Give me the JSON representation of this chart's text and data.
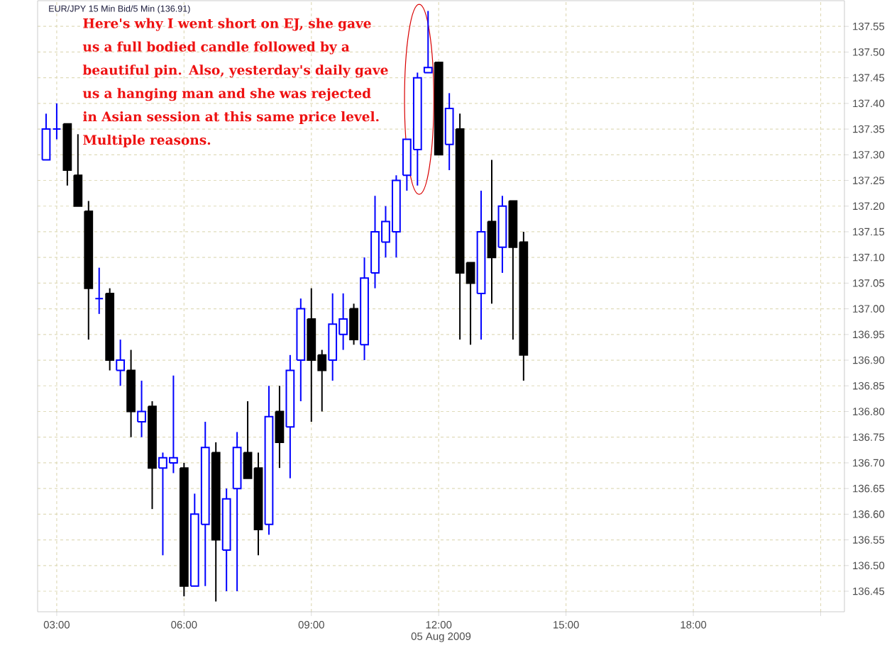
{
  "chart_data": {
    "type": "candlestick",
    "title": "EUR/JPY 15 Min Bid/5 Min (136.91)",
    "xlabel": "05 Aug 2009",
    "annotations": [
      "Here's why I went short on EJ, she gave us a full bodied candle followed by a beautiful pin.  Also, yesterday's daily gave us a hanging man and she was rejected in Asian session at this same price level. Multiple reasons."
    ],
    "x": [
      2.75,
      3.0,
      3.25,
      3.5,
      3.75,
      4.0,
      4.25,
      4.5,
      4.75,
      5.0,
      5.25,
      5.5,
      5.75,
      6.0,
      6.25,
      6.5,
      6.75,
      7.0,
      7.25,
      7.5,
      7.75,
      8.0,
      8.25,
      8.5,
      8.75,
      9.0,
      9.25,
      9.5,
      9.75,
      10.0,
      10.25,
      10.5,
      10.75,
      11.0,
      11.25,
      11.5,
      11.75,
      12.0,
      12.25,
      12.5,
      12.75,
      13.0,
      13.25,
      13.5,
      13.75,
      14.0
    ],
    "ohlc": [
      [
        137.29,
        137.38,
        137.29,
        137.35
      ],
      [
        137.35,
        137.4,
        137.33,
        137.35
      ],
      [
        137.36,
        137.36,
        137.24,
        137.27
      ],
      [
        137.26,
        137.34,
        137.2,
        137.2
      ],
      [
        137.19,
        137.21,
        136.94,
        137.04
      ],
      [
        137.02,
        137.08,
        136.99,
        137.02
      ],
      [
        137.03,
        137.04,
        136.88,
        136.9
      ],
      [
        136.88,
        136.94,
        136.85,
        136.9
      ],
      [
        136.88,
        136.92,
        136.75,
        136.8
      ],
      [
        136.78,
        136.86,
        136.75,
        136.8
      ],
      [
        136.81,
        136.82,
        136.61,
        136.69
      ],
      [
        136.69,
        136.72,
        136.52,
        136.71
      ],
      [
        136.7,
        136.87,
        136.68,
        136.71
      ],
      [
        136.69,
        136.7,
        136.44,
        136.46
      ],
      [
        136.46,
        136.64,
        136.46,
        136.6
      ],
      [
        136.58,
        136.78,
        136.46,
        136.73
      ],
      [
        136.72,
        136.74,
        136.43,
        136.55
      ],
      [
        136.53,
        136.65,
        136.45,
        136.63
      ],
      [
        136.65,
        136.76,
        136.45,
        136.73
      ],
      [
        136.72,
        136.82,
        136.67,
        136.67
      ],
      [
        136.69,
        136.72,
        136.52,
        136.57
      ],
      [
        136.58,
        136.85,
        136.56,
        136.79
      ],
      [
        136.8,
        136.85,
        136.69,
        136.74
      ],
      [
        136.77,
        136.91,
        136.67,
        136.88
      ],
      [
        136.9,
        137.02,
        136.82,
        137.0
      ],
      [
        136.98,
        137.04,
        136.78,
        136.9
      ],
      [
        136.91,
        136.92,
        136.8,
        136.88
      ],
      [
        136.9,
        137.03,
        136.86,
        136.97
      ],
      [
        136.95,
        137.03,
        136.92,
        136.98
      ],
      [
        137.0,
        137.01,
        136.93,
        136.94
      ],
      [
        136.93,
        137.1,
        136.9,
        137.06
      ],
      [
        137.07,
        137.22,
        137.04,
        137.15
      ],
      [
        137.13,
        137.2,
        137.1,
        137.17
      ],
      [
        137.15,
        137.26,
        137.1,
        137.25
      ],
      [
        137.26,
        137.33,
        137.23,
        137.33
      ],
      [
        137.31,
        137.46,
        137.24,
        137.45
      ],
      [
        137.46,
        137.58,
        137.46,
        137.47
      ],
      [
        137.48,
        137.48,
        137.3,
        137.3
      ],
      [
        137.32,
        137.42,
        137.27,
        137.39
      ],
      [
        137.35,
        137.38,
        136.94,
        137.07
      ],
      [
        137.09,
        137.09,
        136.93,
        137.05
      ],
      [
        137.03,
        137.23,
        136.94,
        137.15
      ],
      [
        137.17,
        137.29,
        137.01,
        137.1
      ],
      [
        137.12,
        137.22,
        137.07,
        137.2
      ],
      [
        137.21,
        137.21,
        136.94,
        137.12
      ],
      [
        137.13,
        137.15,
        136.86,
        136.91
      ]
    ],
    "colors": [
      "#0000ff",
      "#0000ff",
      "#000000",
      "#000000",
      "#000000",
      "#0000ff",
      "#000000",
      "#0000ff",
      "#000000",
      "#0000ff",
      "#000000",
      "#0000ff",
      "#0000ff",
      "#000000",
      "#0000ff",
      "#0000ff",
      "#000000",
      "#0000ff",
      "#0000ff",
      "#000000",
      "#000000",
      "#0000ff",
      "#000000",
      "#0000ff",
      "#0000ff",
      "#000000",
      "#000000",
      "#0000ff",
      "#0000ff",
      "#000000",
      "#0000ff",
      "#0000ff",
      "#0000ff",
      "#0000ff",
      "#0000ff",
      "#0000ff",
      "#0000ff",
      "#000000",
      "#0000ff",
      "#000000",
      "#000000",
      "#0000ff",
      "#000000",
      "#0000ff",
      "#000000",
      "#000000"
    ],
    "xlim": [
      2.55,
      21.56
    ],
    "ylim": [
      136.41,
      137.6
    ],
    "xticks": [
      {
        "value": 3,
        "label": "03:00"
      },
      {
        "value": 6,
        "label": "06:00"
      },
      {
        "value": 9,
        "label": "09:00"
      },
      {
        "value": 12,
        "label": "12:00"
      },
      {
        "value": 15,
        "label": "15:00"
      },
      {
        "value": 18,
        "label": "18:00"
      },
      {
        "value": 21,
        "label": null
      }
    ],
    "yticks": [
      136.45,
      {
        "value": 136.5,
        "label": "136.50"
      },
      136.55,
      {
        "value": 136.6,
        "label": "136.60"
      },
      136.65,
      {
        "value": 136.7,
        "label": "136.70"
      },
      136.75,
      {
        "value": 136.8,
        "label": "136.80"
      },
      136.85,
      {
        "value": 136.9,
        "label": "136.90"
      },
      136.95,
      {
        "value": 137,
        "label": "137.00"
      },
      137.05,
      {
        "value": 137.1,
        "label": "137.10"
      },
      137.15,
      {
        "value": 137.2,
        "label": "137.20"
      },
      137.25,
      {
        "value": 137.3,
        "label": "137.30"
      },
      137.35,
      {
        "value": 137.4,
        "label": "137.40"
      },
      137.45,
      {
        "value": 137.5,
        "label": "137.50"
      },
      137.55
    ],
    "grid": true
  }
}
